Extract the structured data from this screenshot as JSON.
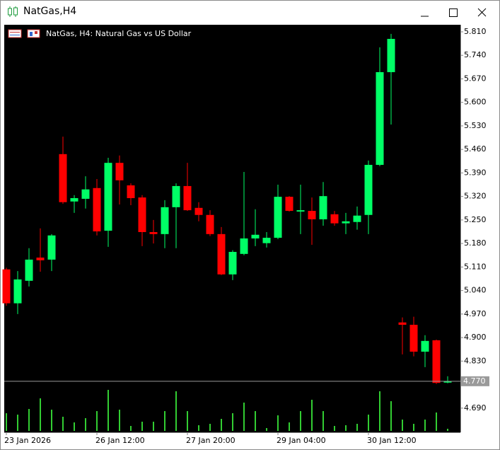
{
  "window": {
    "title": "NatGas,H4"
  },
  "chart_data": {
    "type": "candlestick",
    "title": "NatGas, H4:  Natural Gas vs US Dollar",
    "categories": [
      "23 Jan 2026",
      null,
      null,
      null,
      null,
      null,
      null,
      null,
      "26 Jan 12:00",
      null,
      null,
      null,
      null,
      null,
      null,
      null,
      "27 Jan 20:00",
      null,
      null,
      null,
      null,
      null,
      null,
      null,
      "29 Jan 04:00",
      null,
      null,
      null,
      null,
      null,
      null,
      null,
      "30 Jan 12:00",
      null,
      null,
      null,
      null,
      null,
      null,
      null
    ],
    "open": [
      5.103,
      5.002,
      5.069,
      5.138,
      5.132,
      5.446,
      5.305,
      5.313,
      5.345,
      5.218,
      5.42,
      5.353,
      5.317,
      5.214,
      5.208,
      5.288,
      5.351,
      5.286,
      5.265,
      5.208,
      5.088,
      5.149,
      5.195,
      5.181,
      5.197,
      5.319,
      5.275,
      5.277,
      5.252,
      5.267,
      5.24,
      5.244,
      5.265,
      5.414,
      5.69,
      4.945,
      4.938,
      4.858,
      4.892,
      4.766
    ],
    "high": [
      5.108,
      5.098,
      5.166,
      5.225,
      5.208,
      5.498,
      5.324,
      5.38,
      5.372,
      5.435,
      5.442,
      5.359,
      5.324,
      5.25,
      5.309,
      5.359,
      5.42,
      5.303,
      5.279,
      5.229,
      5.16,
      5.393,
      5.282,
      5.214,
      5.355,
      5.321,
      5.355,
      5.317,
      5.363,
      5.277,
      5.271,
      5.29,
      5.427,
      5.764,
      5.804,
      4.96,
      4.962,
      4.907,
      4.894,
      4.785
    ],
    "low": [
      4.995,
      4.97,
      5.052,
      5.096,
      5.098,
      5.298,
      5.271,
      5.284,
      5.204,
      5.17,
      5.296,
      5.294,
      5.172,
      5.18,
      5.166,
      5.166,
      5.277,
      5.246,
      5.202,
      5.086,
      5.071,
      5.145,
      5.172,
      5.168,
      5.193,
      5.275,
      5.208,
      5.176,
      5.233,
      5.233,
      5.208,
      5.221,
      5.208,
      5.41,
      5.534,
      4.85,
      4.844,
      4.812,
      4.762,
      4.764
    ],
    "close": [
      5.002,
      5.073,
      5.132,
      5.13,
      5.204,
      5.303,
      5.315,
      5.341,
      5.216,
      5.42,
      5.368,
      5.315,
      5.214,
      5.208,
      5.288,
      5.351,
      5.279,
      5.265,
      5.208,
      5.088,
      5.155,
      5.195,
      5.206,
      5.197,
      5.319,
      5.277,
      5.279,
      5.252,
      5.321,
      5.24,
      5.246,
      5.263,
      5.414,
      5.69,
      5.789,
      4.938,
      4.858,
      4.89,
      4.765,
      4.77
    ],
    "volume": [
      25,
      23,
      31,
      46,
      30,
      20,
      12,
      18,
      28,
      58,
      30,
      7,
      13,
      13,
      28,
      56,
      28,
      8,
      10,
      17,
      25,
      40,
      28,
      4,
      22,
      12,
      28,
      44,
      28,
      7,
      8,
      10,
      23,
      56,
      42,
      16,
      10,
      16,
      26,
      3
    ],
    "up_color": "#00ff66",
    "down_color": "#ff0000",
    "volume_color": "#32cd32",
    "ylim": [
      4.618,
      5.831
    ],
    "yticks": [
      {
        "value": 5.81,
        "label": "5.810"
      },
      {
        "value": 5.74,
        "label": "5.740"
      },
      {
        "value": 5.67,
        "label": "5.670"
      },
      {
        "value": 5.6,
        "label": "5.600"
      },
      {
        "value": 5.53,
        "label": "5.530"
      },
      {
        "value": 5.46,
        "label": "5.460"
      },
      {
        "value": 5.39,
        "label": "5.390"
      },
      {
        "value": 5.32,
        "label": "5.320"
      },
      {
        "value": 5.25,
        "label": "5.250"
      },
      {
        "value": 5.18,
        "label": "5.180"
      },
      {
        "value": 5.11,
        "label": "5.110"
      },
      {
        "value": 5.04,
        "label": "5.040"
      },
      {
        "value": 4.97,
        "label": "4.970"
      },
      {
        "value": 4.9,
        "label": "4.900"
      },
      {
        "value": 4.83,
        "label": "4.830"
      },
      {
        "value": 4.69,
        "label": "4.690"
      }
    ],
    "current_price": {
      "value": 4.77,
      "label": "4.770"
    }
  }
}
